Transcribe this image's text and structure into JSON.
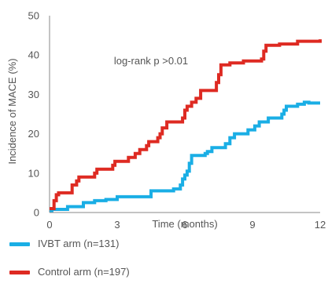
{
  "colors": {
    "ivbt": "#1aaee5",
    "control": "#de2a22",
    "axis": "#8a8a8a",
    "text": "#555555"
  },
  "chart_data": {
    "type": "line",
    "step": true,
    "xlabel": "Time (months)",
    "ylabel": "Incidence of MACE (%)",
    "xlim": [
      0,
      12
    ],
    "ylim": [
      0,
      50
    ],
    "x_ticks": [
      0,
      3,
      6,
      9,
      12
    ],
    "y_ticks": [
      0,
      10,
      20,
      30,
      40,
      50
    ],
    "grid": false,
    "legend_position": "bottom-left",
    "annotation": "log-rank p >0.01",
    "series": [
      {
        "name": "IVBT arm (n=131)",
        "color": "#1aaee5",
        "points": [
          [
            0,
            0.5
          ],
          [
            0.1,
            0.8
          ],
          [
            0.8,
            1.5
          ],
          [
            1.5,
            2.5
          ],
          [
            2.0,
            3.0
          ],
          [
            2.5,
            3.3
          ],
          [
            3.0,
            4.0
          ],
          [
            4.5,
            5.5
          ],
          [
            5.5,
            6.0
          ],
          [
            5.8,
            7.0
          ],
          [
            5.9,
            8.5
          ],
          [
            6.0,
            9.5
          ],
          [
            6.1,
            10.5
          ],
          [
            6.2,
            12.5
          ],
          [
            6.3,
            14.5
          ],
          [
            6.9,
            15.0
          ],
          [
            7.0,
            15.5
          ],
          [
            7.2,
            16.5
          ],
          [
            7.8,
            17.5
          ],
          [
            8.0,
            19.0
          ],
          [
            8.2,
            20.0
          ],
          [
            8.8,
            21.0
          ],
          [
            9.1,
            22.0
          ],
          [
            9.3,
            23.0
          ],
          [
            9.7,
            24.0
          ],
          [
            10.3,
            25.0
          ],
          [
            10.4,
            26.0
          ],
          [
            10.5,
            27.0
          ],
          [
            11.0,
            27.5
          ],
          [
            11.3,
            28.0
          ],
          [
            11.5,
            27.8
          ]
        ],
        "x_end": 12
      },
      {
        "name": "Control arm (n=197)",
        "color": "#de2a22",
        "points": [
          [
            0,
            1.0
          ],
          [
            0.2,
            3.0
          ],
          [
            0.3,
            4.5
          ],
          [
            0.4,
            5.0
          ],
          [
            1.0,
            7.0
          ],
          [
            1.2,
            8.0
          ],
          [
            1.3,
            9.0
          ],
          [
            2.0,
            10.0
          ],
          [
            2.1,
            11.0
          ],
          [
            2.8,
            12.0
          ],
          [
            2.9,
            13.0
          ],
          [
            3.5,
            14.0
          ],
          [
            3.8,
            15.0
          ],
          [
            4.0,
            16.0
          ],
          [
            4.3,
            17.0
          ],
          [
            4.4,
            18.0
          ],
          [
            4.8,
            19.0
          ],
          [
            4.9,
            20.0
          ],
          [
            5.0,
            21.5
          ],
          [
            5.2,
            23.0
          ],
          [
            5.9,
            24.0
          ],
          [
            6.0,
            26.0
          ],
          [
            6.1,
            27.0
          ],
          [
            6.3,
            28.0
          ],
          [
            6.5,
            29.0
          ],
          [
            6.7,
            31.0
          ],
          [
            7.4,
            33.0
          ],
          [
            7.5,
            35.0
          ],
          [
            7.6,
            37.5
          ],
          [
            8.0,
            38.0
          ],
          [
            8.6,
            38.5
          ],
          [
            9.4,
            39.0
          ],
          [
            9.5,
            41.0
          ],
          [
            9.6,
            42.5
          ],
          [
            10.2,
            42.8
          ],
          [
            11.0,
            43.5
          ],
          [
            12.0,
            44.0
          ]
        ],
        "x_end": 12
      }
    ]
  }
}
